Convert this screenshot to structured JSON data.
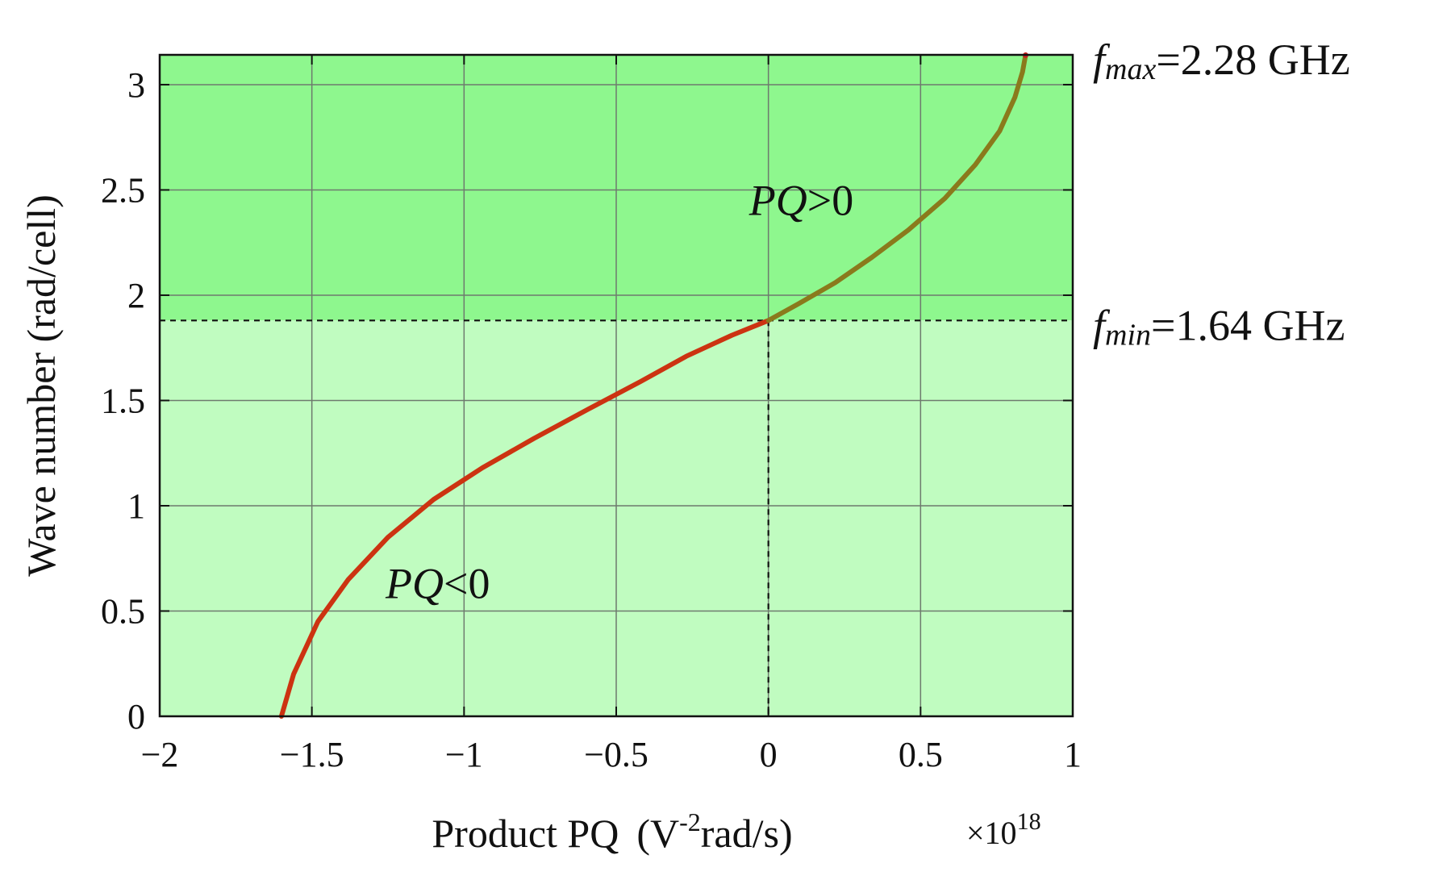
{
  "chart_data": {
    "type": "line",
    "xlabel": "Product PQ",
    "xlabel_units_prefix": "(V",
    "xlabel_units_exp": "-2",
    "xlabel_units_suffix": "rad/s)",
    "ylabel": "Wave number (rad/cell)",
    "x_multiplier_base": "×10",
    "x_multiplier_exp": "18",
    "xlim": [
      -2,
      1
    ],
    "ylim": [
      0,
      3.14159
    ],
    "x_ticks": [
      -2,
      -1.5,
      -1,
      -0.5,
      0,
      0.5,
      1
    ],
    "x_tick_labels": [
      "−2",
      "−1.5",
      "−1",
      "−0.5",
      "0",
      "0.5",
      "1"
    ],
    "y_ticks": [
      0,
      0.5,
      1,
      1.5,
      2,
      2.5,
      3
    ],
    "y_tick_labels": [
      "0",
      "0.5",
      "1",
      "1.5",
      "2",
      "2.5",
      "3"
    ],
    "grid": true,
    "region_split_y": 1.88,
    "regions": [
      {
        "name": "PQ>0",
        "y_range": [
          1.88,
          3.14159
        ],
        "color": "#8ef78e"
      },
      {
        "name": "PQ<0",
        "y_range": [
          0,
          1.88
        ],
        "color": "#c0fcc0"
      }
    ],
    "series": [
      {
        "color_low": "#cc3311",
        "color_high": "#8a7a1c",
        "x": [
          -1.6,
          -1.56,
          -1.48,
          -1.38,
          -1.25,
          -1.1,
          -0.94,
          -0.77,
          -0.59,
          -0.42,
          -0.27,
          -0.12,
          0.0,
          0.1,
          0.22,
          0.34,
          0.46,
          0.58,
          0.68,
          0.76,
          0.81,
          0.835,
          0.845
        ],
        "y": [
          0.0,
          0.2,
          0.45,
          0.65,
          0.85,
          1.03,
          1.18,
          1.32,
          1.46,
          1.59,
          1.71,
          1.81,
          1.88,
          1.96,
          2.06,
          2.18,
          2.31,
          2.46,
          2.62,
          2.78,
          2.94,
          3.06,
          3.14
        ]
      }
    ],
    "reference_lines": [
      {
        "orientation": "horizontal",
        "y": 1.88,
        "style": "dashed"
      },
      {
        "orientation": "vertical",
        "x": 0,
        "y_range": [
          0,
          1.88
        ],
        "style": "dashed"
      }
    ],
    "annotations": {
      "pq_positive": {
        "text_it": "PQ",
        "text_rest": ">0",
        "x": -0.05,
        "y": 2.45
      },
      "pq_negative": {
        "text_it": "PQ",
        "text_rest": "<0",
        "x": -1.25,
        "y": 0.63
      },
      "fmax": {
        "f": "f",
        "sub": "max",
        "rest": "=2.28 GHz",
        "y": 3.14159
      },
      "fmin": {
        "f": "f",
        "sub": "min",
        "rest": "=1.64 GHz",
        "y": 1.88
      }
    }
  }
}
